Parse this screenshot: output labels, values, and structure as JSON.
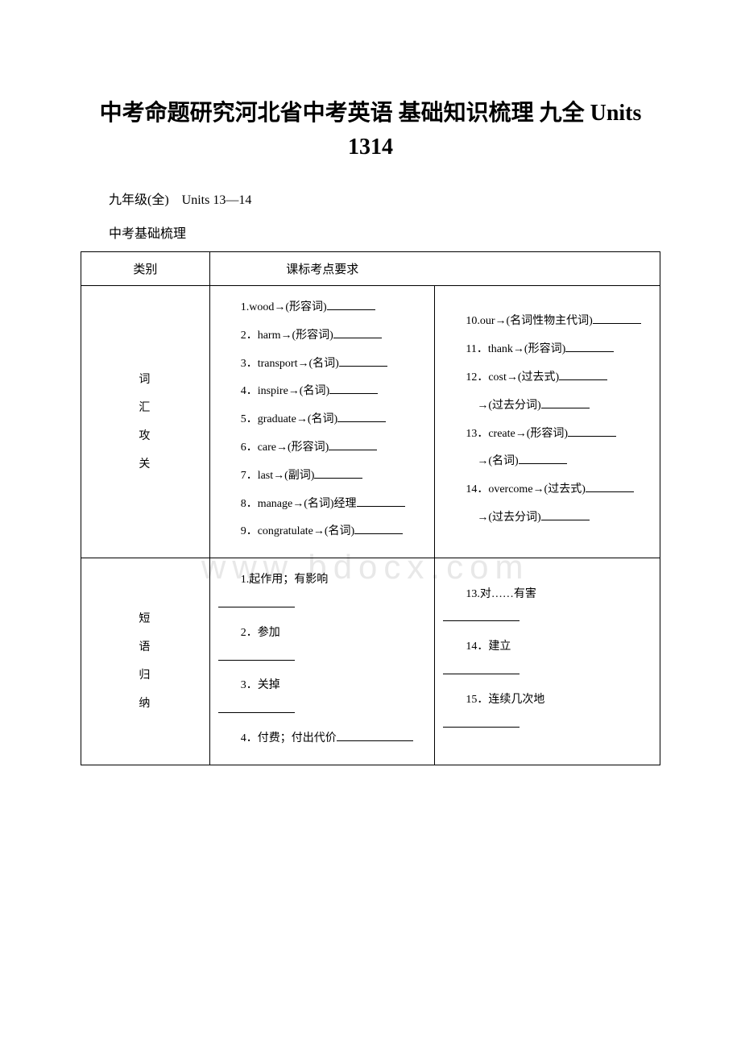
{
  "title": "中考命题研究河北省中考英语 基础知识梳理 九全 Units 1314",
  "subtitle": "九年级(全)　Units 13—14",
  "sectionLabel": "中考基础梳理",
  "watermark": "www.bdocx.com",
  "headers": {
    "category": "类别",
    "requirement": "课标考点要求"
  },
  "vocab": {
    "categoryLabel": "词\n汇\n攻\n关",
    "leftItems": [
      "1.wood→(形容词)",
      "2．harm→(形容词)",
      "3．transport→(名词)",
      "4．inspire→(名词)",
      "5．graduate→(名词)",
      "6．care→(形容词)",
      "7．last→(副词)",
      "8．manage→(名词)经理",
      "9．congratulate→(名词)"
    ],
    "rightItems": [
      "10.our→(名词性物主代词)",
      "11．thank→(形容词)",
      "12．cost→(过去式)",
      "　→(过去分词)",
      "13．create→(形容词)",
      "　→(名词)",
      "14．overcome→(过去式)",
      "　→(过去分词)"
    ]
  },
  "phrases": {
    "categoryLabel": "短\n语\n归\n纳",
    "leftItems": [
      "1.起作用；有影响",
      "2．参加",
      "3．关掉",
      "4．付费；付出代价"
    ],
    "rightItems": [
      "13.对……有害",
      "14．建立",
      "15．连续几次地"
    ]
  },
  "styling": {
    "backgroundColor": "#ffffff",
    "textColor": "#000000",
    "borderColor": "#000000",
    "watermarkColor": "#e8e8e8",
    "titleFontSize": 28,
    "bodyFontSize": 14,
    "subtitleFontSize": 16,
    "pageWidth": 920,
    "pageHeight": 1302
  }
}
